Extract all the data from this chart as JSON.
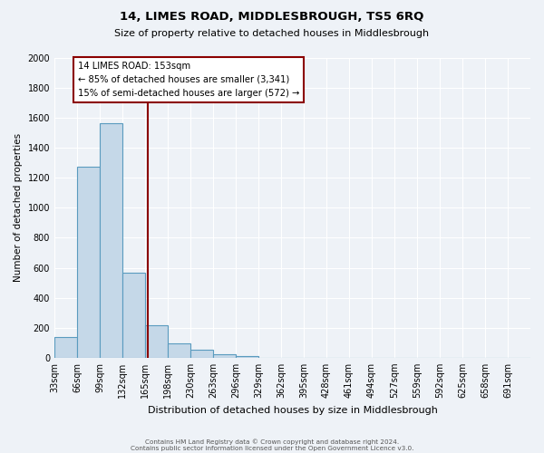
{
  "title": "14, LIMES ROAD, MIDDLESBROUGH, TS5 6RQ",
  "subtitle": "Size of property relative to detached houses in Middlesbrough",
  "xlabel": "Distribution of detached houses by size in Middlesbrough",
  "ylabel": "Number of detached properties",
  "bin_labels": [
    "33sqm",
    "66sqm",
    "99sqm",
    "132sqm",
    "165sqm",
    "198sqm",
    "230sqm",
    "263sqm",
    "296sqm",
    "329sqm",
    "362sqm",
    "395sqm",
    "428sqm",
    "461sqm",
    "494sqm",
    "527sqm",
    "559sqm",
    "592sqm",
    "625sqm",
    "658sqm",
    "691sqm"
  ],
  "bin_edges": [
    16.5,
    49.5,
    82.5,
    115.5,
    148.5,
    181.5,
    214.5,
    247.5,
    280.5,
    313.5,
    346.5,
    379.5,
    412.5,
    445.5,
    478.5,
    511.5,
    544.5,
    577.5,
    610.5,
    643.5,
    676.5,
    709.5
  ],
  "bar_values": [
    140,
    1275,
    1565,
    570,
    215,
    95,
    55,
    25,
    10,
    0,
    0,
    0,
    0,
    0,
    0,
    0,
    0,
    0,
    0,
    0,
    0
  ],
  "bar_color": "#c5d8e8",
  "bar_edge_color": "#5a9bbf",
  "property_line_x": 153,
  "property_line_color": "#8b0000",
  "annotation_title": "14 LIMES ROAD: 153sqm",
  "annotation_line1": "← 85% of detached houses are smaller (3,341)",
  "annotation_line2": "15% of semi-detached houses are larger (572) →",
  "annotation_box_color": "#ffffff",
  "annotation_box_edge_color": "#8b0000",
  "ylim": [
    0,
    2000
  ],
  "yticks": [
    0,
    200,
    400,
    600,
    800,
    1000,
    1200,
    1400,
    1600,
    1800,
    2000
  ],
  "footer1": "Contains HM Land Registry data © Crown copyright and database right 2024.",
  "footer2": "Contains public sector information licensed under the Open Government Licence v3.0.",
  "bg_color": "#eef2f7",
  "plot_bg_color": "#eef2f7"
}
